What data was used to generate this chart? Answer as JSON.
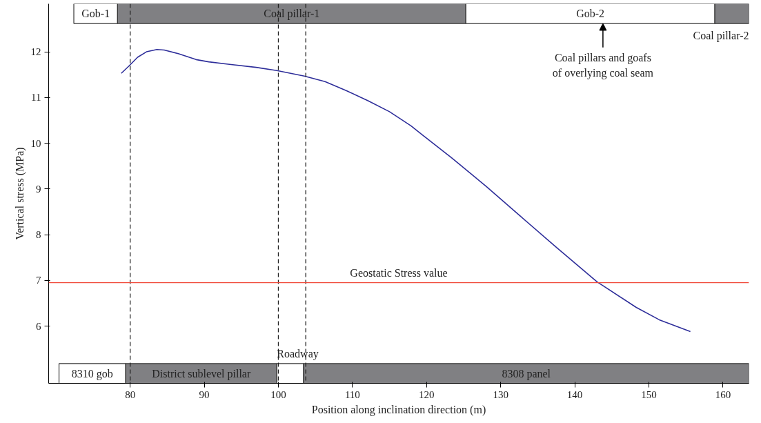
{
  "chart_data": {
    "type": "line",
    "xlabel": "Position along inclination direction (m)",
    "ylabel": "Vertical stress (MPa)",
    "xlim": [
      69,
      163.5
    ],
    "ylim": [
      4.75,
      13.05
    ],
    "xticks": [
      80,
      90,
      100,
      110,
      120,
      130,
      140,
      150,
      160
    ],
    "yticks": [
      6,
      7,
      8,
      9,
      10,
      11,
      12
    ],
    "grid": false,
    "series": [
      {
        "color": "#2e2e9a",
        "x": [
          78.8,
          79.9,
          81.0,
          82.2,
          83.6,
          84.6,
          86.5,
          88.9,
          90.6,
          93.2,
          97.0,
          99.8,
          103.5,
          106.3,
          109.2,
          112.1,
          115.0,
          117.9,
          119.3,
          123.4,
          128.1,
          132.7,
          137.4,
          143.0,
          148.3,
          151.4,
          155.6
        ],
        "values": [
          11.53,
          11.7,
          11.88,
          12.0,
          12.05,
          12.04,
          11.96,
          11.83,
          11.78,
          11.73,
          11.66,
          11.59,
          11.47,
          11.35,
          11.15,
          10.93,
          10.69,
          10.38,
          10.2,
          9.68,
          9.05,
          8.4,
          7.74,
          6.97,
          6.41,
          6.14,
          5.88
        ]
      }
    ],
    "ref_lines": [
      {
        "axis": "x",
        "value": 80,
        "color": "#222222",
        "line_style": "dashed"
      },
      {
        "axis": "x",
        "value": 100,
        "color": "#222222",
        "line_style": "dashed"
      },
      {
        "axis": "x",
        "value": 103.7,
        "color": "#222222",
        "line_style": "dashed"
      },
      {
        "axis": "y",
        "value": 6.95,
        "label": "Geostatic Stress value",
        "color": "#f04a3a",
        "line_style": "solid"
      }
    ],
    "bands": [
      {
        "axis": "x",
        "from": 72.4,
        "to": 78.3,
        "label": "Gob-1",
        "color": "#ffffff"
      },
      {
        "axis": "x",
        "from": 78.3,
        "to": 125.3,
        "label": "Coal pillar-1",
        "color": "#808083"
      },
      {
        "axis": "x",
        "from": 125.3,
        "to": 158.9,
        "label": "Gob-2",
        "color": "#ffffff"
      },
      {
        "axis": "x",
        "from": 158.9,
        "to": 163.5,
        "label": "Coal pillar-2",
        "color": "#808083"
      },
      {
        "axis": "x",
        "from": 70.4,
        "to": 79.4,
        "label": "8310 gob",
        "color": "#ffffff"
      },
      {
        "axis": "x",
        "from": 79.4,
        "to": 99.8,
        "label": "District sublevel pillar",
        "color": "#808083"
      },
      {
        "axis": "x",
        "from": 99.8,
        "to": 103.4,
        "label": "Roadway",
        "color": "#ffffff"
      },
      {
        "axis": "x",
        "from": 103.4,
        "to": 163.5,
        "label": "8308 panel",
        "color": "#808083"
      }
    ],
    "annotations": [
      {
        "text": "Coal pillars and goafs\nof overlying coal seam",
        "x": 143.8,
        "y": 12.62
      }
    ]
  }
}
